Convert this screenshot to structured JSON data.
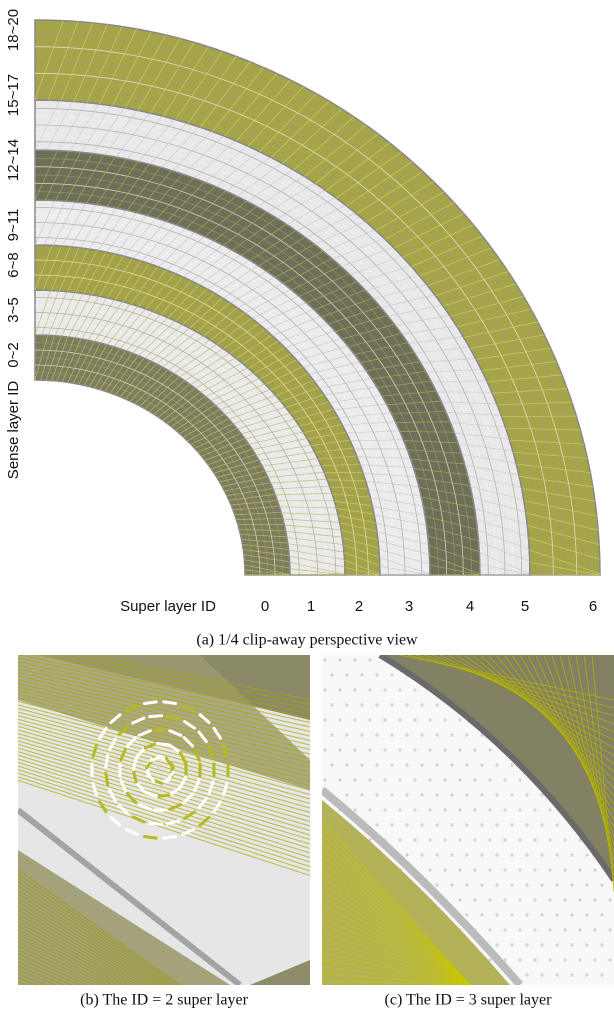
{
  "figure": {
    "panel_a": {
      "y_axis_label": "Sense layer ID",
      "sense_layer_groups": [
        "0~2",
        "3~5",
        "6~8",
        "9~11",
        "12~14",
        "15~17",
        "18~20"
      ],
      "x_axis_label": "Super layer ID",
      "super_layer_ids": [
        "0",
        "1",
        "2",
        "3",
        "4",
        "5",
        "6"
      ],
      "caption": "(a) 1/4 clip-away perspective view"
    },
    "panel_b": {
      "caption": "(b) The ID = 2 super layer"
    },
    "panel_c": {
      "caption": "(c) The ID = 3 super layer"
    }
  }
}
